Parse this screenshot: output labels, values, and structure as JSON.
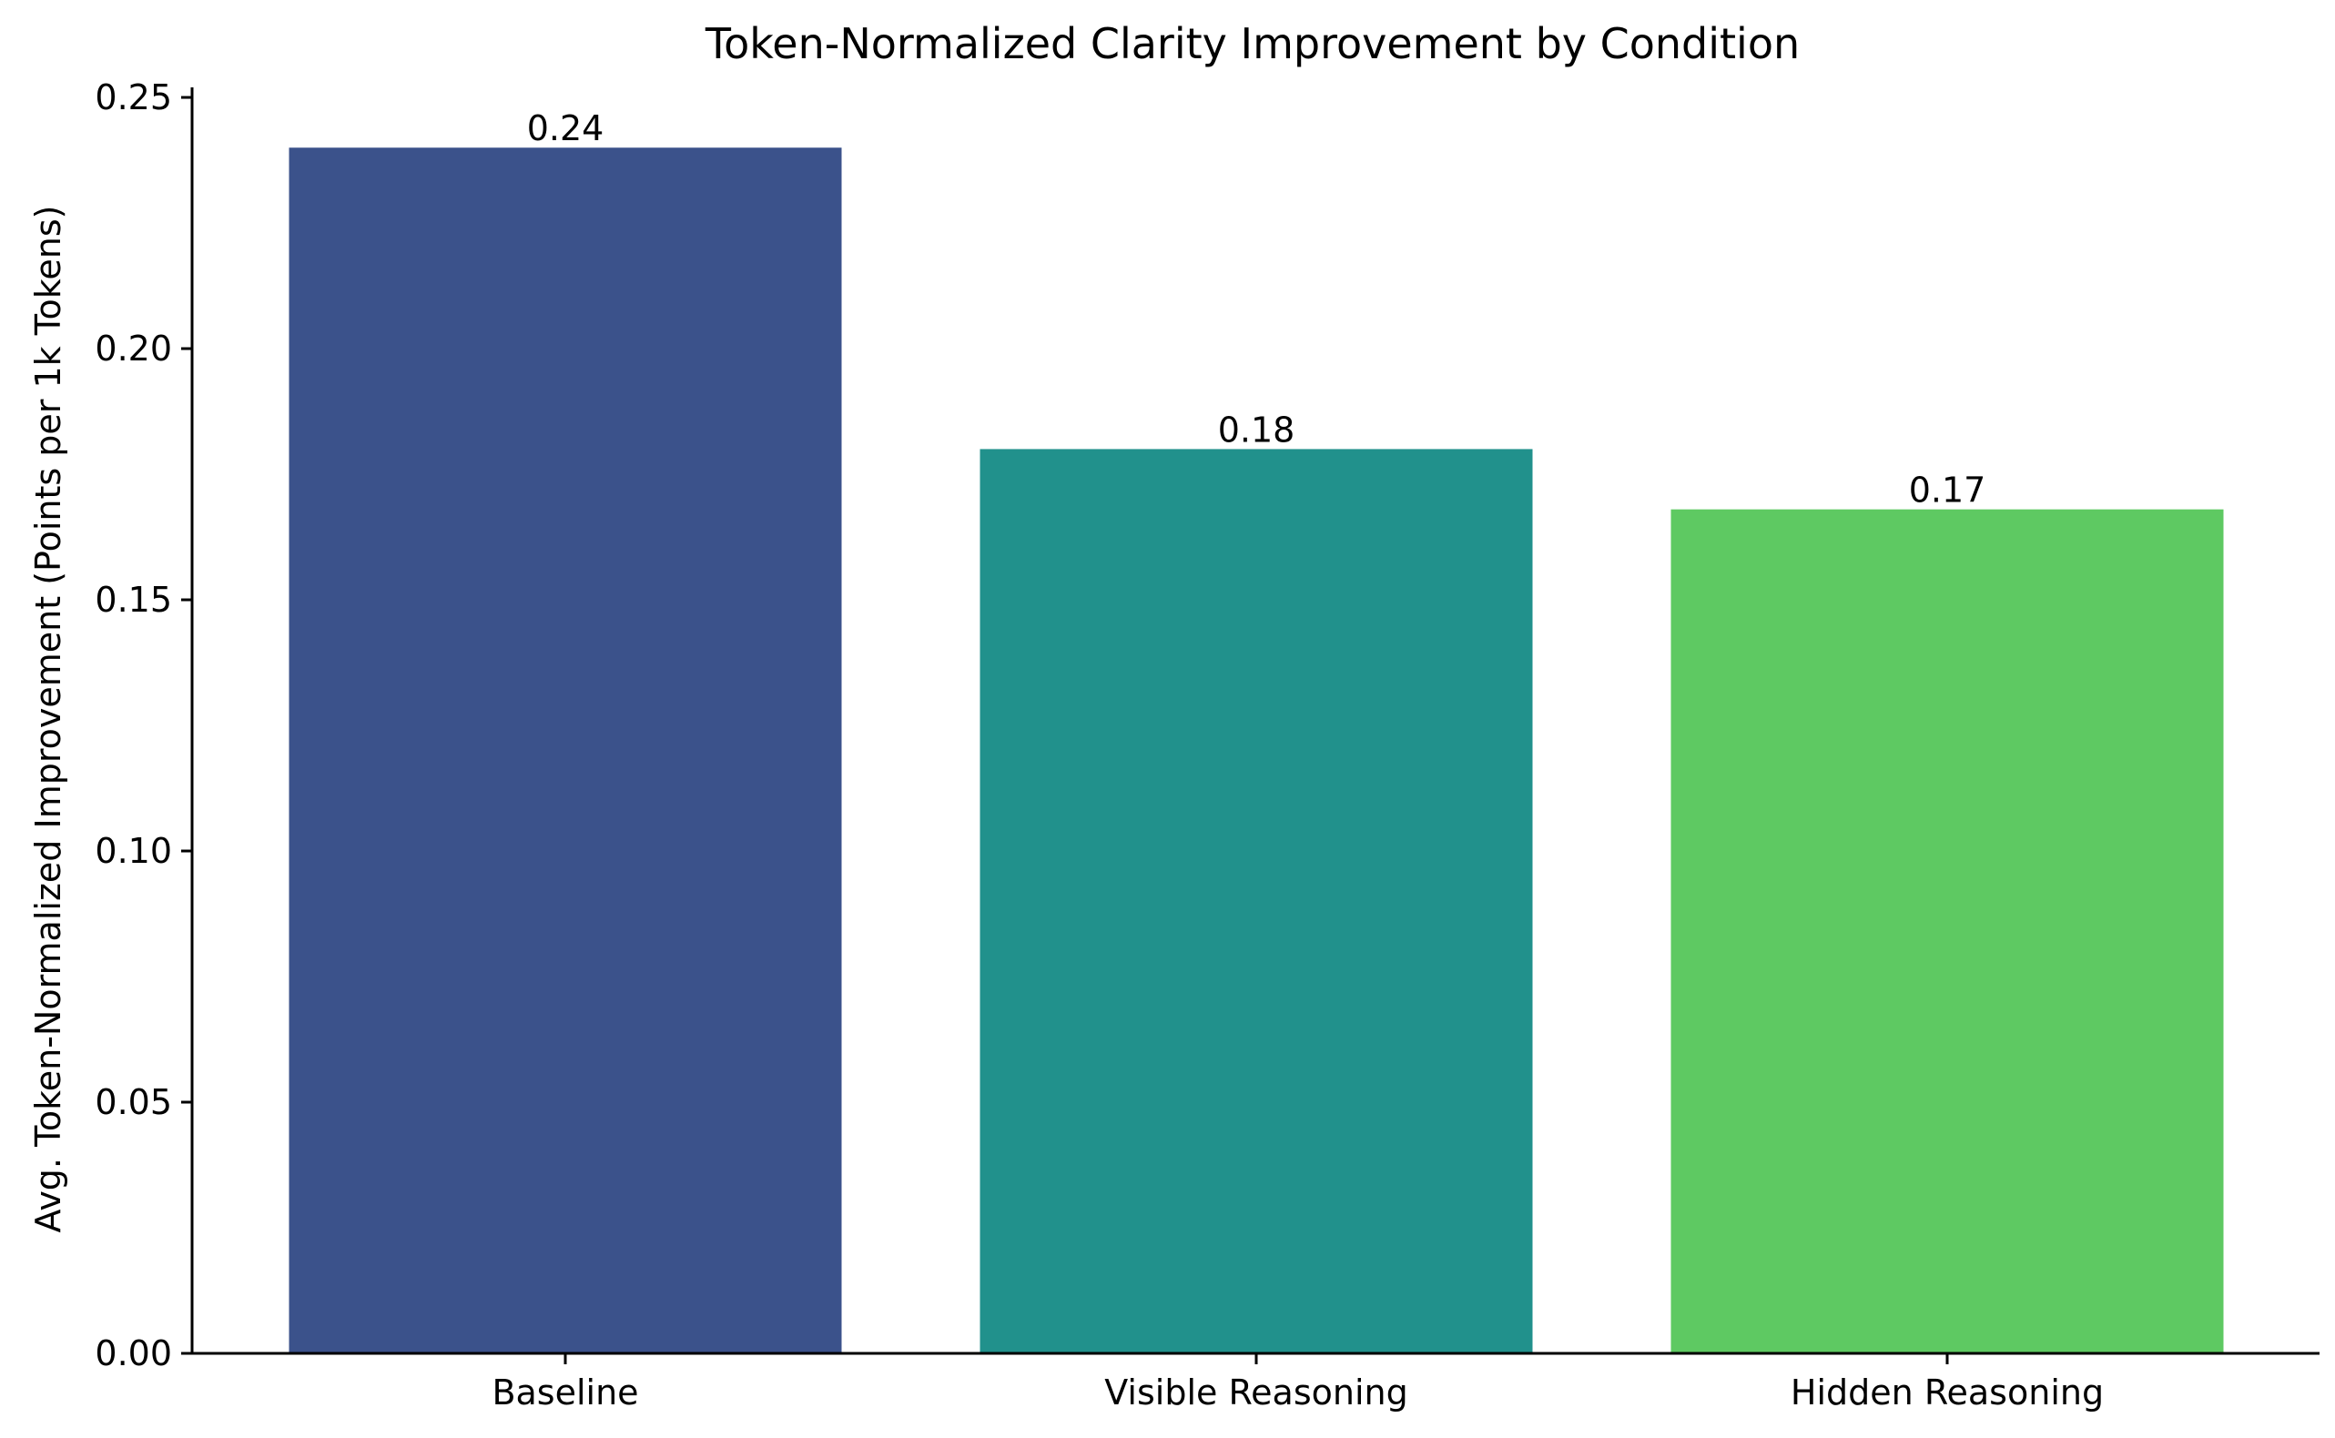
{
  "chart_data": {
    "type": "bar",
    "title": "Token-Normalized Clarity Improvement by Condition",
    "xlabel": "",
    "ylabel": "Avg. Token-Normalized Improvement (Points per 1k Tokens)",
    "categories": [
      "Baseline",
      "Visible Reasoning",
      "Hidden Reasoning"
    ],
    "values": [
      0.24,
      0.18,
      0.168
    ],
    "data_labels": [
      "0.24",
      "0.18",
      "0.17"
    ],
    "colors": [
      "#3b528b",
      "#21918c",
      "#5ec962"
    ],
    "ylim": [
      0,
      0.252
    ],
    "yticks": [
      0.0,
      0.05,
      0.1,
      0.15,
      0.2,
      0.25
    ],
    "ytick_labels": [
      "0.00",
      "0.05",
      "0.10",
      "0.15",
      "0.20",
      "0.25"
    ],
    "grid": false,
    "legend": "none"
  }
}
